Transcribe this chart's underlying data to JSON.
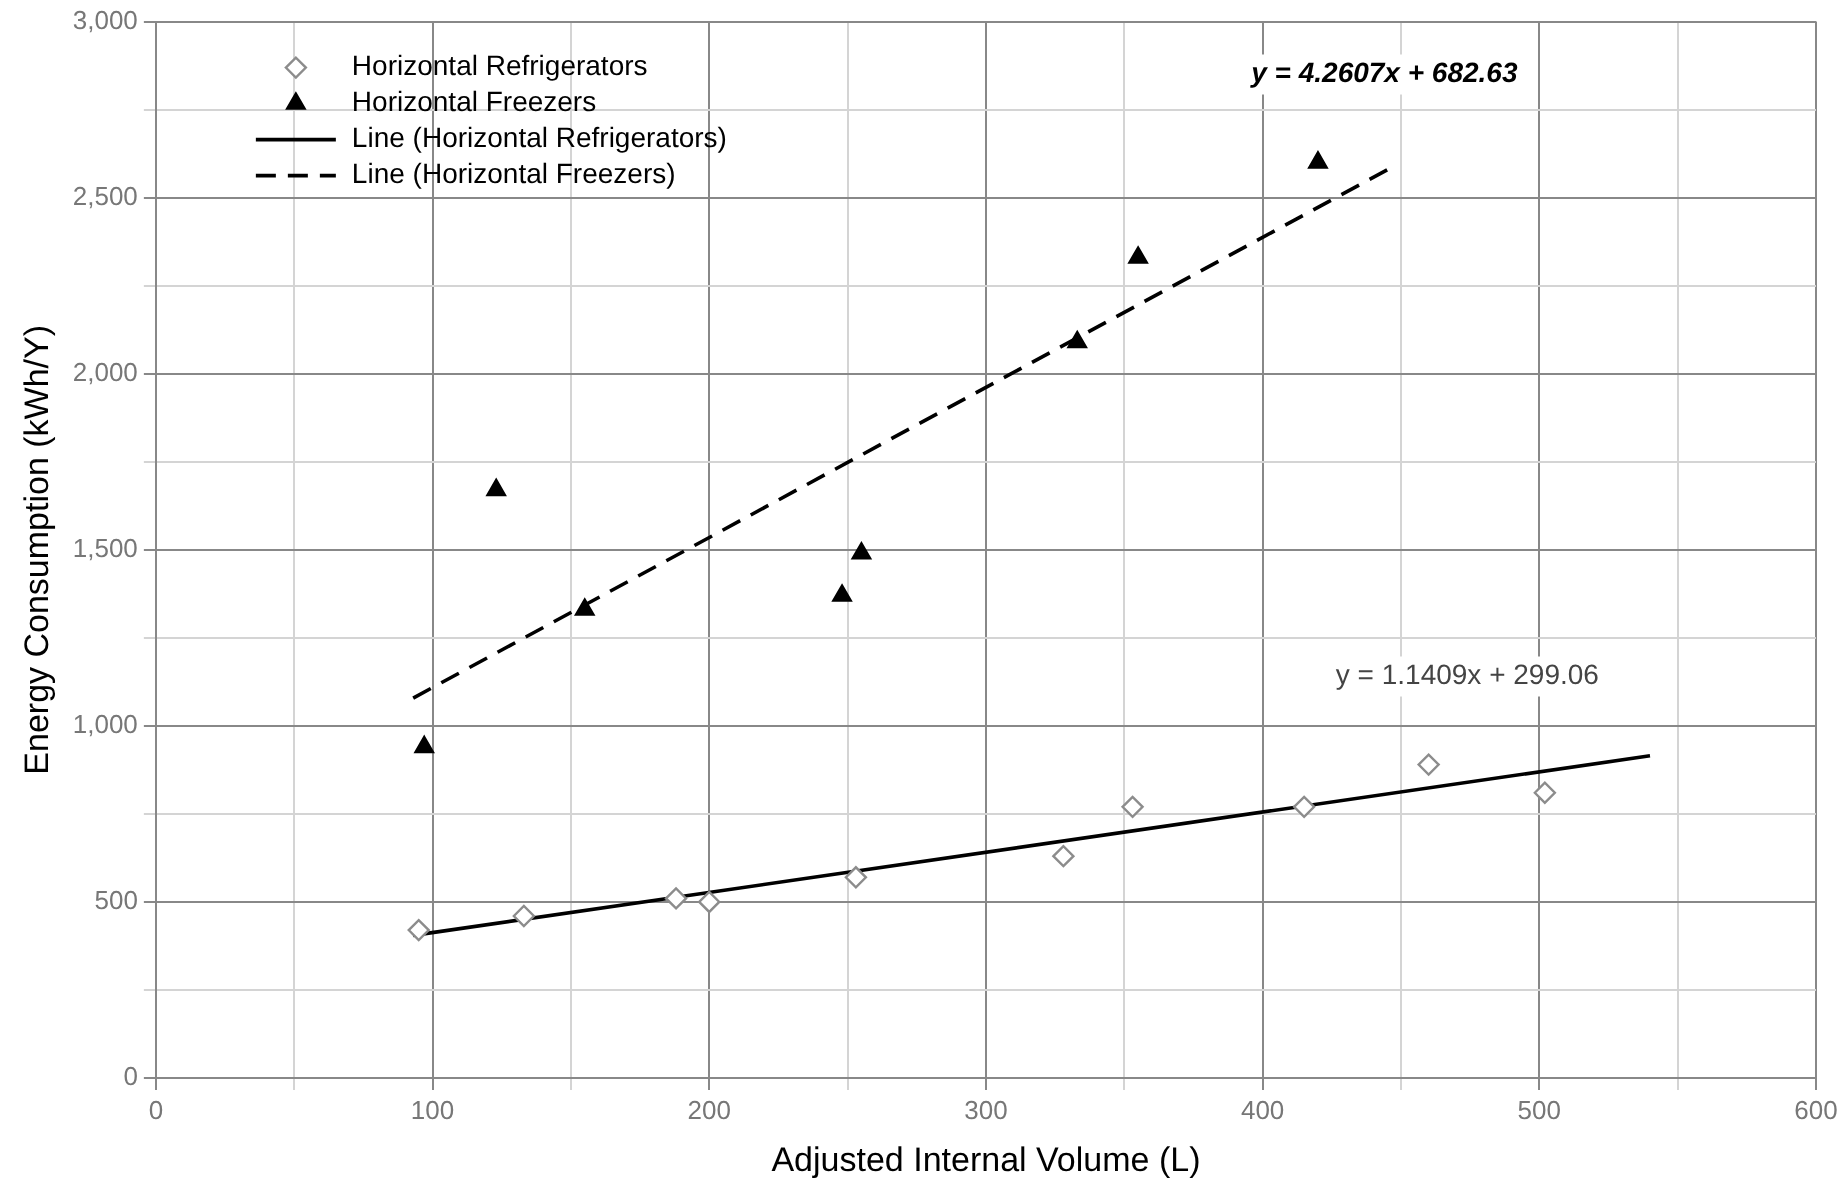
{
  "chart_data": {
    "type": "scatter",
    "xlabel": "Adjusted Internal Volume (L)",
    "ylabel": "Energy Consumption (kWh/Y)",
    "xlim": [
      0,
      600
    ],
    "ylim": [
      0,
      3000
    ],
    "xticks": [
      0,
      {
        "value": 50,
        "label": null
      },
      100,
      {
        "value": 150,
        "label": null
      },
      200,
      {
        "value": 250,
        "label": null
      },
      300,
      {
        "value": 350,
        "label": null
      },
      400,
      {
        "value": 450,
        "label": null
      },
      500,
      {
        "value": 550,
        "label": null
      },
      600
    ],
    "yticks": [
      {
        "value": 0,
        "label": "0"
      },
      {
        "value": 250,
        "label": null
      },
      {
        "value": 500,
        "label": "500"
      },
      {
        "value": 750,
        "label": null
      },
      {
        "value": 1000,
        "label": "1,000"
      },
      {
        "value": 1250,
        "label": null
      },
      {
        "value": 1500,
        "label": "1,500"
      },
      {
        "value": 1750,
        "label": null
      },
      {
        "value": 2000,
        "label": "2,000"
      },
      {
        "value": 2250,
        "label": null
      },
      {
        "value": 2500,
        "label": "2,500"
      },
      {
        "value": 2750,
        "label": null
      },
      {
        "value": 3000,
        "label": "3,000"
      }
    ],
    "grid": true,
    "legend": "top left",
    "series": [
      {
        "name": "Horizontal Refrigerators",
        "marker": "diamond",
        "color": "#8c8c8c",
        "x": [
          95,
          133,
          188,
          200,
          253,
          328,
          353,
          415,
          460,
          502
        ],
        "values": [
          420,
          460,
          510,
          500,
          570,
          630,
          770,
          770,
          890,
          810
        ]
      },
      {
        "name": "Horizontal Freezers",
        "marker": "triangle",
        "color": "#000000",
        "x": [
          97,
          123,
          155,
          248,
          255,
          333,
          355,
          420
        ],
        "values": [
          940,
          1670,
          1330,
          1370,
          1490,
          2090,
          2330,
          2600
        ]
      },
      {
        "name": "Line (Horizontal Refrigerators)",
        "type": "line",
        "marker": "none",
        "line_style": "solid",
        "color": "#000000",
        "x": [
          93,
          540
        ],
        "values": [
          405,
          915
        ]
      },
      {
        "name": "Line (Horizontal Freezers)",
        "type": "line",
        "marker": "none",
        "line_style": "dashed",
        "color": "#000000",
        "x": [
          93,
          445
        ],
        "values": [
          1079,
          2579
        ]
      }
    ],
    "annotations": [
      "y = 4.2607x + 682.63",
      "y = 1.1409x + 299.06"
    ]
  }
}
